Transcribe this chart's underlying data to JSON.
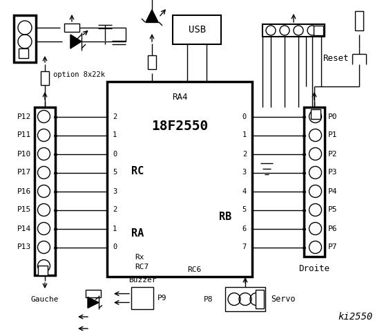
{
  "title": "ki2550",
  "bg_color": "#ffffff",
  "line_color": "#000000",
  "left_labels": [
    "P12",
    "P11",
    "P10",
    "P17",
    "P16",
    "P15",
    "P14",
    "P13"
  ],
  "right_labels": [
    "P0",
    "P1",
    "P2",
    "P3",
    "P4",
    "P5",
    "P6",
    "P7"
  ],
  "rc_pins": [
    "2",
    "1",
    "0"
  ],
  "ra_pins": [
    "5",
    "3",
    "2",
    "1",
    "0"
  ],
  "rb_pins": [
    "0",
    "1",
    "2",
    "3",
    "4",
    "5",
    "6",
    "7"
  ],
  "option_label": "option 8x22k",
  "reset_label": "Reset",
  "gauche_label": "Gauche",
  "droite_label": "Droite",
  "servo_label": "Servo",
  "buzzer_label": "Buzzer",
  "usb_label": "USB"
}
